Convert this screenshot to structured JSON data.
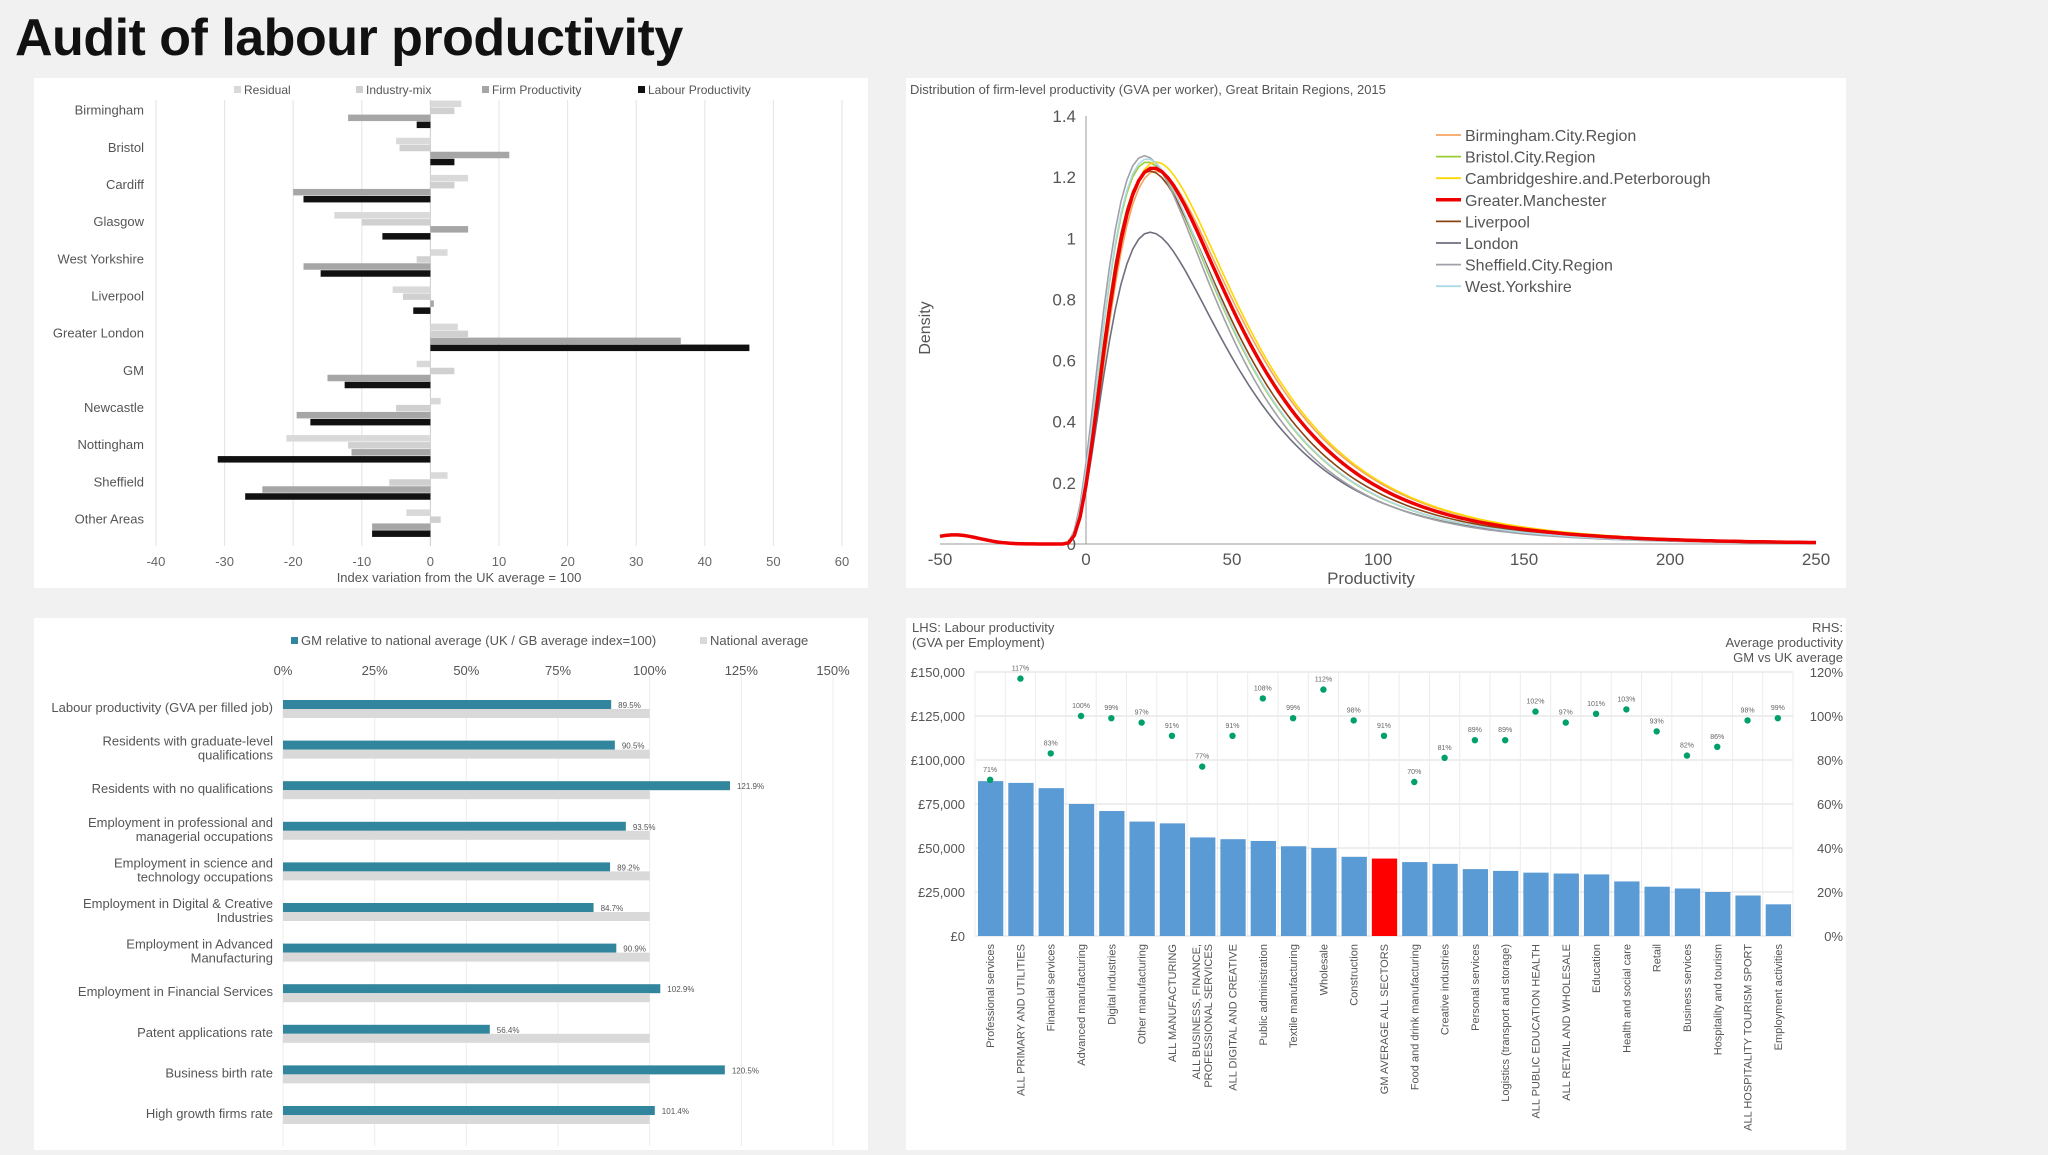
{
  "page_title": "Audit of labour productivity",
  "colors": {
    "residual": "#d9d9d9",
    "industry_mix": "#d0d0d0",
    "firm_productivity": "#a6a6a6",
    "labour_productivity": "#111111",
    "teal": "#31859c",
    "national_grey": "#d9d9d9",
    "bar_blue": "#5b9bd5",
    "bar_red": "#ff0000",
    "dot_green": "#00a06a"
  },
  "chart_data": [
    {
      "type": "bar",
      "orientation": "horizontal",
      "title": "",
      "xlabel": "Index variation from the UK average = 100",
      "xlim": [
        -40,
        60
      ],
      "xticks": [
        -40,
        -30,
        -20,
        -10,
        0,
        10,
        20,
        30,
        40,
        50,
        60
      ],
      "legend_position": "top",
      "categories": [
        "Birmingham",
        "Bristol",
        "Cardiff",
        "Glasgow",
        "West Yorkshire",
        "Liverpool",
        "Greater London",
        "GM",
        "Newcastle",
        "Nottingham",
        "Sheffield",
        "Other Areas"
      ],
      "series": [
        {
          "name": "Residual",
          "values": [
            4.5,
            -5,
            5.5,
            -14,
            2.5,
            -5.5,
            4,
            -2,
            1.5,
            -21,
            2.5,
            -3.5
          ]
        },
        {
          "name": "Industry-mix",
          "values": [
            3.5,
            -4.5,
            3.5,
            -10,
            -2,
            -4,
            5.5,
            3.5,
            -5,
            -12,
            -6,
            1.5
          ]
        },
        {
          "name": "Firm Productivity",
          "values": [
            -12,
            11.5,
            -20,
            5.5,
            -18.5,
            0.5,
            36.5,
            -15,
            -19.5,
            -11.5,
            -24.5,
            -8.5
          ]
        },
        {
          "name": "Labour Productivity",
          "values": [
            -2,
            3.5,
            -18.5,
            -7,
            -16,
            -2.5,
            46.5,
            -12.5,
            -17.5,
            -31,
            -27,
            -8.5
          ]
        }
      ]
    },
    {
      "type": "line",
      "title": "Distribution of firm-level productivity (GVA per worker), Great Britain Regions, 2015",
      "xlabel": "Productivity",
      "ylabel": "Density",
      "xlim": [
        -50,
        250
      ],
      "ylim": [
        0,
        1.4
      ],
      "xticks": [
        -50,
        0,
        50,
        100,
        150,
        200,
        250
      ],
      "yticks": [
        0,
        0.2,
        0.4,
        0.6,
        0.8,
        1,
        1.2,
        1.4
      ],
      "ytick_labels": [
        "0",
        "0.2",
        "0.4",
        "0.6",
        "0.8",
        "1",
        "1.2",
        "1.4"
      ],
      "legend_position": "top-right",
      "series": [
        {
          "name": "Birmingham.City.Region",
          "color": "#f4a460",
          "peak_x": 24,
          "peak_y": 1.22
        },
        {
          "name": "Bristol.City.Region",
          "color": "#9acd32",
          "peak_x": 21,
          "peak_y": 1.25
        },
        {
          "name": "Cambridgeshire.and.Peterborough",
          "color": "#ffd700",
          "peak_x": 24,
          "peak_y": 1.25
        },
        {
          "name": "Greater.Manchester",
          "color": "#ee0000",
          "peak_x": 23,
          "peak_y": 1.23
        },
        {
          "name": "Liverpool",
          "color": "#8b4513",
          "peak_x": 22,
          "peak_y": 1.22
        },
        {
          "name": "London",
          "color": "#6e6e7e",
          "peak_x": 22,
          "peak_y": 1.02
        },
        {
          "name": "Sheffield.City.Region",
          "color": "#a0a0a8",
          "peak_x": 20,
          "peak_y": 1.27
        },
        {
          "name": "West.Yorkshire",
          "color": "#add8e6",
          "peak_x": 21,
          "peak_y": 1.26
        }
      ]
    },
    {
      "type": "bar",
      "orientation": "horizontal",
      "title": "",
      "xlim": [
        0,
        150
      ],
      "xticks": [
        "0%",
        "25%",
        "50%",
        "75%",
        "100%",
        "125%",
        "150%"
      ],
      "legend_position": "top",
      "categories": [
        [
          "Labour productivity (GVA per filled job)"
        ],
        [
          "Residents with graduate-level",
          "qualifications"
        ],
        [
          "Residents with no qualifications"
        ],
        [
          "Employment in professional and",
          "managerial occupations"
        ],
        [
          "Employment in science and",
          "technology occupations"
        ],
        [
          "Employment in Digital & Creative",
          "Industries"
        ],
        [
          "Employment in Advanced",
          "Manufacturing"
        ],
        [
          "Employment in Financial Services"
        ],
        [
          "Patent applications rate"
        ],
        [
          "Business birth rate"
        ],
        [
          "High growth firms rate"
        ]
      ],
      "series": [
        {
          "name": "GM relative to national average (UK / GB average index=100)",
          "values": [
            89.5,
            90.5,
            121.9,
            93.5,
            89.2,
            84.7,
            90.9,
            102.9,
            56.4,
            120.5,
            101.4
          ],
          "labels": [
            "89.5%",
            "90.5%",
            "121.9%",
            "93.5%",
            "89.2%",
            "84.7%",
            "90.9%",
            "102.9%",
            "56.4%",
            "120.5%",
            "101.4%"
          ]
        },
        {
          "name": "National average",
          "values": [
            100,
            100,
            100,
            100,
            100,
            100,
            100,
            100,
            100,
            100,
            100
          ]
        }
      ]
    },
    {
      "type": "bar",
      "title": "",
      "lhs_title": [
        "LHS: Labour productivity",
        "(GVA per Employment)"
      ],
      "rhs_title": [
        "RHS:",
        "Average productivity",
        "GM vs UK average"
      ],
      "ylim_lhs": [
        0,
        150000
      ],
      "yticks_lhs": [
        "£0",
        "£25,000",
        "£50,000",
        "£75,000",
        "£100,000",
        "£125,000",
        "£150,000"
      ],
      "ylim_rhs": [
        0,
        120
      ],
      "yticks_rhs": [
        "0%",
        "20%",
        "40%",
        "60%",
        "80%",
        "100%",
        "120%"
      ],
      "categories": [
        [
          "Professional services"
        ],
        [
          "ALL PRIMARY AND UTILITIES"
        ],
        [
          "Financial services"
        ],
        [
          "Advanced manufacturing"
        ],
        [
          "Digital industries"
        ],
        [
          "Other manufacturing"
        ],
        [
          "ALL MANUFACTURING"
        ],
        [
          "ALL BUSINESS, FINANCE,",
          "PROFESSIONAL SERVICES"
        ],
        [
          "ALL DIGITAL AND CREATIVE"
        ],
        [
          "Public administration"
        ],
        [
          "Textile manufacturing"
        ],
        [
          "Wholesale"
        ],
        [
          "Construction"
        ],
        [
          "GM AVERAGE ALL SECTORS"
        ],
        [
          "Food and drink manufacturing"
        ],
        [
          "Creative industries"
        ],
        [
          "Personal services"
        ],
        [
          "Logistics (transport and storage)"
        ],
        [
          "ALL PUBLIC EDUCATION HEALTH"
        ],
        [
          "ALL RETAIL AND WHOLESALE"
        ],
        [
          "Education"
        ],
        [
          "Health and social care"
        ],
        [
          "Retail"
        ],
        [
          "Business services"
        ],
        [
          "Hospitality and tourism"
        ],
        [
          "ALL HOSPITALITY TOURISM SPORT"
        ],
        [
          "Employment activities"
        ]
      ],
      "highlight_index": 13,
      "bar_values": [
        88000,
        87000,
        84000,
        75000,
        71000,
        65000,
        64000,
        56000,
        55000,
        54000,
        51000,
        50000,
        45000,
        44000,
        42000,
        41000,
        38000,
        37000,
        36000,
        35500,
        35000,
        31000,
        28000,
        27000,
        25000,
        23000,
        18000
      ],
      "dot_values": [
        71,
        117,
        83,
        100,
        99,
        97,
        91,
        77,
        91,
        108,
        99,
        112,
        98,
        91,
        70,
        81,
        89,
        89,
        102,
        97,
        101,
        103,
        93,
        82,
        86,
        98,
        99
      ]
    }
  ]
}
